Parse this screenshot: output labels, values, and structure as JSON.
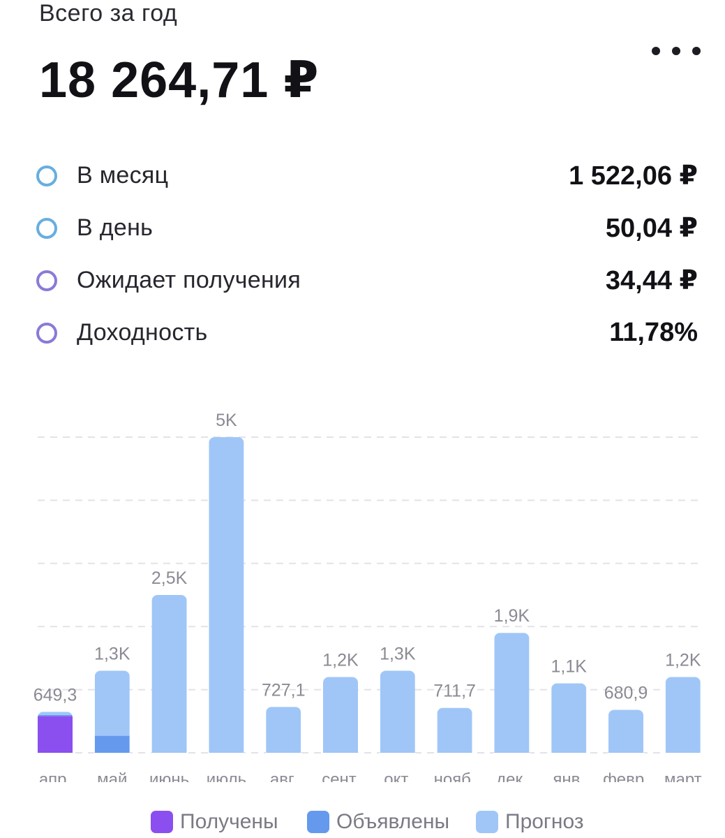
{
  "header": {
    "title": "Всего за год",
    "total": "18 264,71 ₽",
    "more_icon": "more-horizontal-icon"
  },
  "stats": [
    {
      "label": "В месяц",
      "value": "1 522,06 ₽",
      "ring_color": "#67aee0"
    },
    {
      "label": "В день",
      "value": "50,04 ₽",
      "ring_color": "#67aee0"
    },
    {
      "label": "Ожидает получения",
      "value": "34,44 ₽",
      "ring_color": "#8a7ad8"
    },
    {
      "label": "Доходность",
      "value": "11,78%",
      "ring_color": "#8a7ad8"
    }
  ],
  "legend": [
    {
      "label": "Получены",
      "color": "#8b4ff0"
    },
    {
      "label": "Объявлены",
      "color": "#6499ee"
    },
    {
      "label": "Прогноз",
      "color": "#a0c6f8"
    }
  ],
  "chart_data": {
    "type": "bar",
    "stacked": true,
    "grid": "dashed-horizontal",
    "categories": [
      "апр.",
      "май",
      "июнь",
      "июль",
      "авг.",
      "сент.",
      "окт.",
      "нояб.",
      "дек.",
      "янв.",
      "февр.",
      "март"
    ],
    "data_labels": [
      "649,3",
      "1,3K",
      "2,5K",
      "5K",
      "727,1",
      "1,2K",
      "1,3K",
      "711,7",
      "1,9K",
      "1,1K",
      "680,9",
      "1,2K"
    ],
    "series": [
      {
        "name": "Получены",
        "color": "#8b4ff0",
        "values": [
          580,
          0,
          0,
          0,
          0,
          0,
          0,
          0,
          0,
          0,
          0,
          0
        ]
      },
      {
        "name": "Объявлены",
        "color": "#6499ee",
        "values": [
          20,
          270,
          0,
          0,
          0,
          0,
          0,
          0,
          0,
          0,
          0,
          0
        ]
      },
      {
        "name": "Прогноз",
        "color": "#a0c6f8",
        "values": [
          49.3,
          1030,
          2500,
          5000,
          727.1,
          1200,
          1300,
          711.7,
          1900,
          1100,
          680.9,
          1200
        ]
      }
    ],
    "ylim": [
      0,
      5000
    ]
  }
}
